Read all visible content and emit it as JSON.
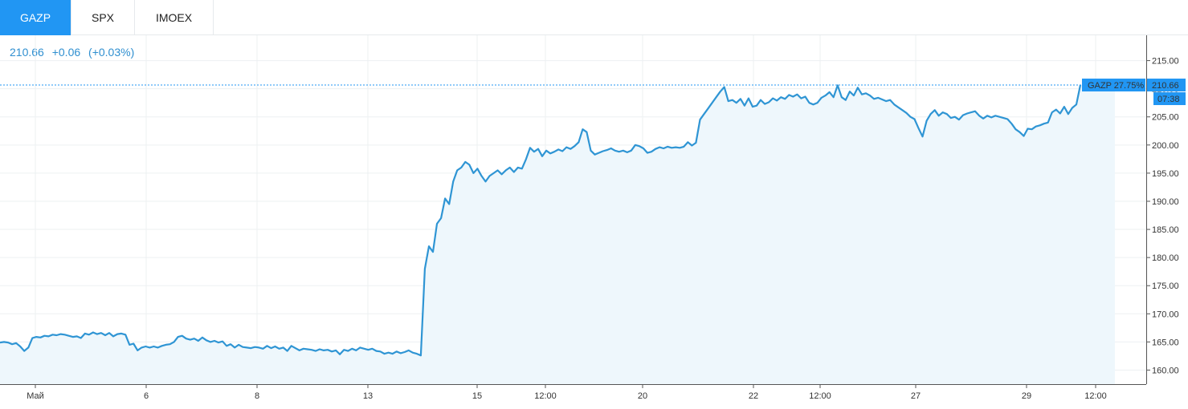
{
  "tabs": [
    {
      "label": "GAZP",
      "active": true
    },
    {
      "label": "SPX",
      "active": false
    },
    {
      "label": "IMOEX",
      "active": false
    }
  ],
  "quote": {
    "price": "210.66",
    "change": "+0.06",
    "change_pct": "(+0.03%)"
  },
  "colors": {
    "accent": "#2196f3",
    "line": "#2f95d4",
    "area": "#eef7fc",
    "grid": "#edf0f2"
  },
  "price_tag": {
    "series_label": "GAZP 27.75%",
    "price": "210.66",
    "time": "07:38"
  },
  "chart_data": {
    "type": "area",
    "symbol": "GAZP",
    "ylim": [
      157.5,
      219.5
    ],
    "y_ticks": [
      "160.00",
      "165.00",
      "170.00",
      "175.00",
      "180.00",
      "185.00",
      "190.00",
      "195.00",
      "200.00",
      "205.00",
      "210.00",
      "215.00"
    ],
    "x_ticks": [
      "Май",
      "6",
      "8",
      "13",
      "15",
      "12:00",
      "20",
      "22",
      "12:00",
      "27",
      "29",
      "12:00"
    ],
    "grid": true,
    "last_value": 210.66,
    "series": [
      {
        "values": [
          164.9,
          165.0,
          164.9,
          164.6,
          164.8,
          164.2,
          163.4,
          164.0,
          165.7,
          165.9,
          165.8,
          166.1,
          166.0,
          166.3,
          166.2,
          166.4,
          166.3,
          166.1,
          165.9,
          166.0,
          165.7,
          166.5,
          166.3,
          166.7,
          166.4,
          166.6,
          166.2,
          166.6,
          166.0,
          166.4,
          166.5,
          166.3,
          164.5,
          164.7,
          163.5,
          164.0,
          164.2,
          164.0,
          164.2,
          164.0,
          164.3,
          164.5,
          164.6,
          165.0,
          165.9,
          166.1,
          165.6,
          165.4,
          165.6,
          165.2,
          165.8,
          165.3,
          165.0,
          165.2,
          164.9,
          165.1,
          164.3,
          164.6,
          164.0,
          164.5,
          164.1,
          164.0,
          163.9,
          164.1,
          164.0,
          163.8,
          164.3,
          163.9,
          164.2,
          163.8,
          164.0,
          163.4,
          164.3,
          163.9,
          163.5,
          163.8,
          163.7,
          163.6,
          163.4,
          163.7,
          163.5,
          163.6,
          163.3,
          163.5,
          162.8,
          163.6,
          163.4,
          163.8,
          163.5,
          164.0,
          163.8,
          163.6,
          163.8,
          163.4,
          163.3,
          162.9,
          163.1,
          162.9,
          163.3,
          163.0,
          163.2,
          163.5,
          163.1,
          162.9,
          162.6,
          178.0,
          182.0,
          181.0,
          186.0,
          187.0,
          190.5,
          189.5,
          193.5,
          195.5,
          196.0,
          197.0,
          196.5,
          195.0,
          195.8,
          194.5,
          193.5,
          194.5,
          195.0,
          195.5,
          194.8,
          195.5,
          196.0,
          195.2,
          196.0,
          195.8,
          197.5,
          199.5,
          198.8,
          199.3,
          198.0,
          199.0,
          198.5,
          198.8,
          199.2,
          198.9,
          199.6,
          199.3,
          199.8,
          200.5,
          202.8,
          202.3,
          199.0,
          198.3,
          198.6,
          198.9,
          199.1,
          199.4,
          199.0,
          198.8,
          199.0,
          198.7,
          199.0,
          200.0,
          199.8,
          199.4,
          198.6,
          198.8,
          199.3,
          199.6,
          199.4,
          199.7,
          199.5,
          199.6,
          199.5,
          199.7,
          200.5,
          199.9,
          200.4,
          204.5,
          205.5,
          206.5,
          207.5,
          208.5,
          209.5,
          210.3,
          207.8,
          208.0,
          207.5,
          208.2,
          207.0,
          208.3,
          206.8,
          207.0,
          208.0,
          207.3,
          207.6,
          208.3,
          207.9,
          208.5,
          208.2,
          208.9,
          208.6,
          209.0,
          208.3,
          208.6,
          207.5,
          207.2,
          207.5,
          208.4,
          208.8,
          209.4,
          208.5,
          210.6,
          208.5,
          208.0,
          209.5,
          208.8,
          210.2,
          209.0,
          209.2,
          208.8,
          208.2,
          208.4,
          208.1,
          207.8,
          208.0,
          207.2,
          206.7,
          206.2,
          205.7,
          205.0,
          204.6,
          203.0,
          201.5,
          204.3,
          205.5,
          206.2,
          205.2,
          205.8,
          205.5,
          204.8,
          205.0,
          204.5,
          205.3,
          205.6,
          205.8,
          206.0,
          205.2,
          204.7,
          205.2,
          204.9,
          205.2,
          205.0,
          204.8,
          204.6,
          203.8,
          202.8,
          202.3,
          201.6,
          202.9,
          202.8,
          203.3,
          203.5,
          203.8,
          204.0,
          205.8,
          206.3,
          205.6,
          206.8,
          205.5,
          206.6,
          207.2,
          210.66
        ]
      }
    ]
  }
}
